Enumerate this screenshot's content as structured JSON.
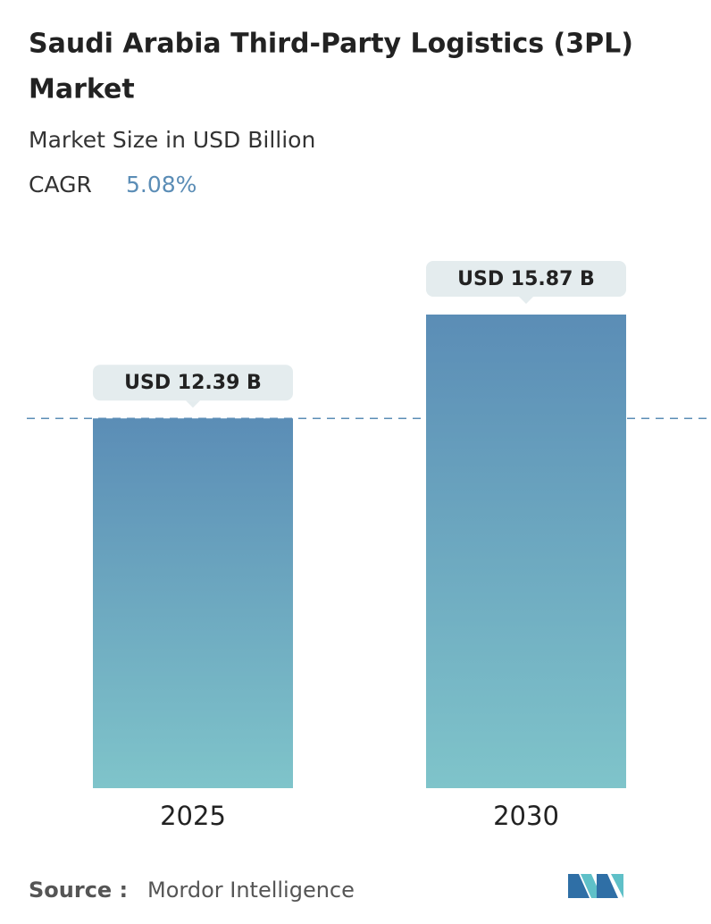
{
  "chart_data": {
    "type": "bar",
    "title": [
      "Saudi Arabia Third-Party Logistics (3PL)",
      "Market"
    ],
    "subtitle": "Market Size in USD Billion",
    "cagr": {
      "label": "CAGR",
      "value": "5.08%"
    },
    "categories": [
      "2025",
      "2030"
    ],
    "values": [
      12.39,
      15.87
    ],
    "value_labels": [
      "USD 12.39 B",
      "USD 15.87 B"
    ],
    "color": [
      "#5b8db6",
      "#7fc4ca"
    ],
    "source": {
      "label": "Source :",
      "value": "Mordor Intelligence"
    }
  }
}
